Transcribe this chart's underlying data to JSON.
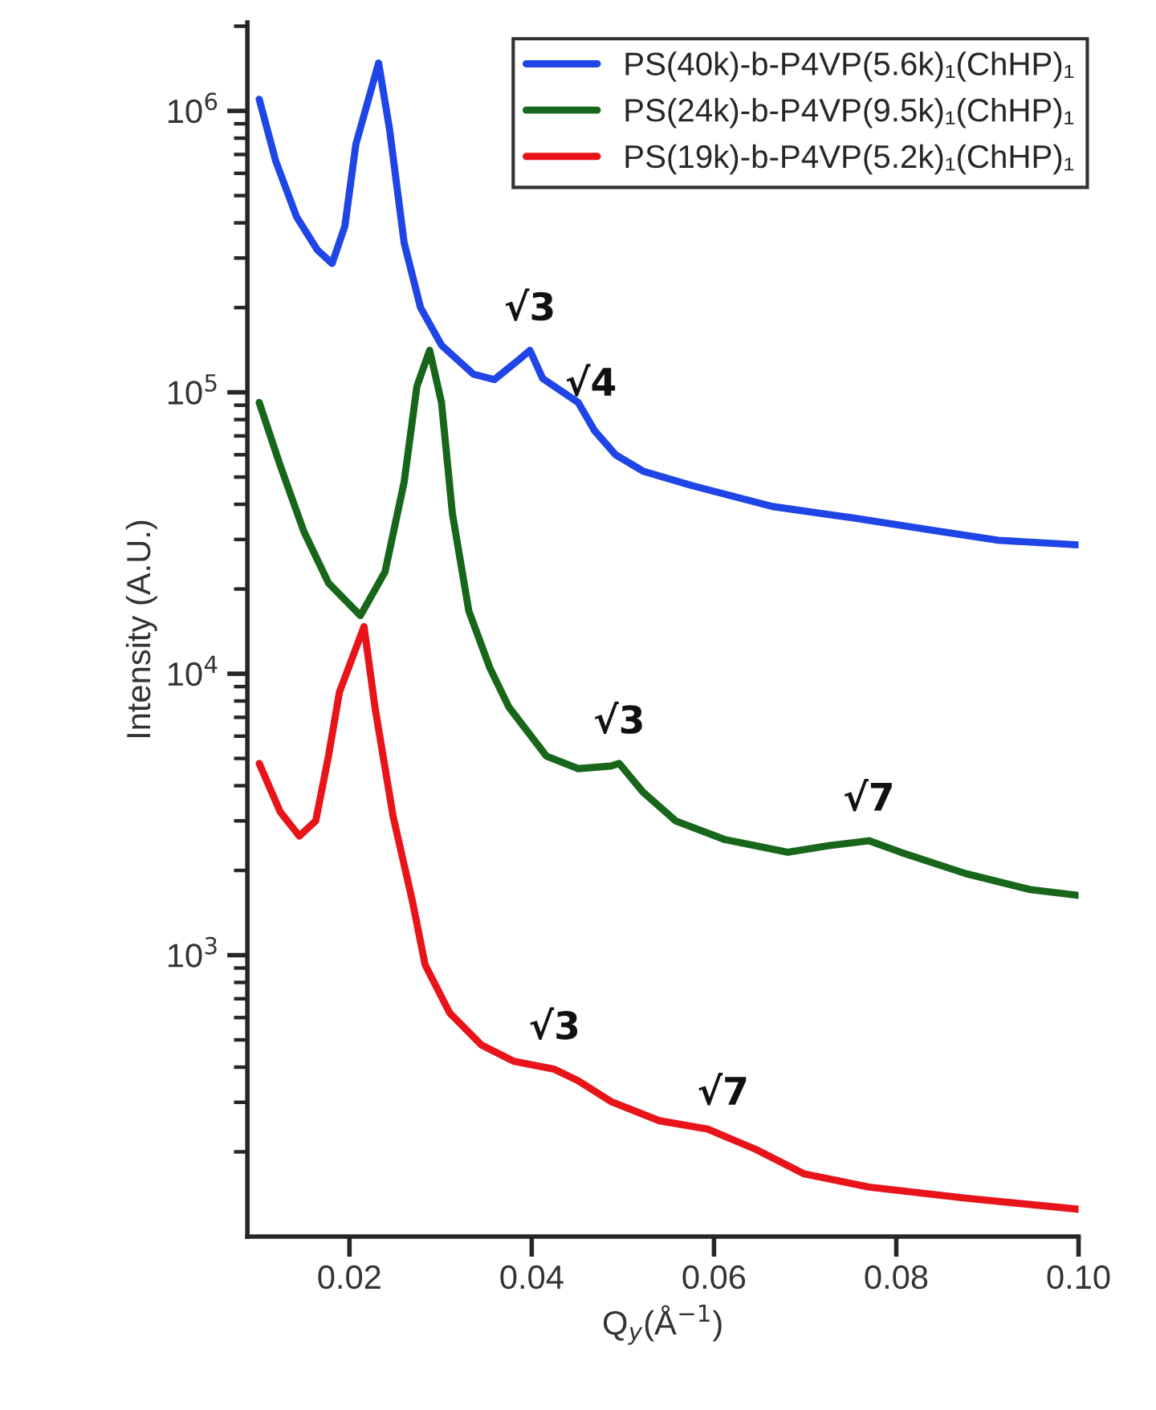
{
  "chart_data": {
    "type": "line",
    "xlabel": "Q$_{y}$(Å$^{−1}$)",
    "ylabel": "Intensity (A.U.)",
    "log": "y",
    "xlim": [
      0.0088,
      0.1
    ],
    "ylim": [
      100,
      2060000
    ],
    "xticks": [
      0.02,
      0.04,
      0.06,
      0.08,
      {
        "value": 0.1,
        "label": "0.10"
      }
    ],
    "yticks": [
      {
        "value": 1000,
        "label": "10$^{3}$"
      },
      {
        "value": 10000,
        "label": "10$^{4}$"
      },
      {
        "value": 100000,
        "label": "10$^{5}$"
      },
      {
        "value": 1000000,
        "label": "10$^{6}$"
      }
    ],
    "grid": false,
    "legend": "top right",
    "marker": "none",
    "line_style": "solid",
    "series": [
      {
        "name": "PS(40k)-b-P4VP(5.6k)₁(ChHP)₁",
        "color": "#1f45e6",
        "x": [
          0.0101,
          0.0119,
          0.0142,
          0.0165,
          0.0181,
          0.0195,
          0.0207,
          0.0232,
          0.0244,
          0.026,
          0.0278,
          0.0301,
          0.0336,
          0.0359,
          0.0384,
          0.0398,
          0.0412,
          0.0451,
          0.0469,
          0.0492,
          0.0522,
          0.0575,
          0.0664,
          0.0752,
          0.0841,
          0.0912,
          0.1
        ],
        "values": [
          1100000,
          665000,
          420000,
          320000,
          287000,
          390000,
          760000,
          1480000,
          860000,
          340000,
          200000,
          147000,
          116000,
          111000,
          129000,
          141000,
          112000,
          92000,
          73000,
          60000,
          52500,
          46700,
          39300,
          35800,
          32300,
          29800,
          28700
        ]
      },
      {
        "name": "PS(24k)-b-P4VP(9.5k)₁(ChHP)₁",
        "color": "#17661a",
        "x": [
          0.0101,
          0.0124,
          0.015,
          0.0177,
          0.0212,
          0.0239,
          0.026,
          0.0274,
          0.0288,
          0.0301,
          0.0313,
          0.0331,
          0.0354,
          0.0375,
          0.0416,
          0.0451,
          0.0487,
          0.0496,
          0.0522,
          0.0558,
          0.0611,
          0.0681,
          0.0726,
          0.077,
          0.0805,
          0.0876,
          0.0947,
          0.1
        ],
        "values": [
          92000,
          55000,
          32000,
          21000,
          16100,
          23000,
          48000,
          105000,
          141000,
          92000,
          37000,
          16700,
          10500,
          7600,
          5100,
          4600,
          4700,
          4800,
          3800,
          3000,
          2580,
          2320,
          2450,
          2550,
          2320,
          1950,
          1710,
          1630
        ]
      },
      {
        "name": "PS(19k)-b-P4VP(5.2k)₁(ChHP)₁",
        "color": "#e8141a",
        "x": [
          0.0101,
          0.0124,
          0.0145,
          0.0163,
          0.0177,
          0.0189,
          0.0216,
          0.0228,
          0.0248,
          0.0269,
          0.0283,
          0.031,
          0.0345,
          0.038,
          0.0425,
          0.0451,
          0.0487,
          0.054,
          0.0593,
          0.0646,
          0.0699,
          0.077,
          0.0876,
          0.1
        ],
        "values": [
          4800,
          3230,
          2650,
          3000,
          5100,
          8600,
          14700,
          7600,
          3100,
          1560,
          925,
          623,
          479,
          420,
          393,
          358,
          302,
          258,
          241,
          204,
          167,
          150,
          137,
          125
        ]
      }
    ],
    "annotations": [
      {
        "text": "√3",
        "x": 0.0398,
        "y": 141000
      },
      {
        "text": "√4",
        "x": 0.0465,
        "y": 76000
      },
      {
        "text": "√3",
        "x": 0.0496,
        "y": 4800
      },
      {
        "text": "√7",
        "x": 0.077,
        "y": 2550
      },
      {
        "text": "√3",
        "x": 0.0425,
        "y": 393
      },
      {
        "text": "√7",
        "x": 0.061,
        "y": 230
      }
    ]
  }
}
